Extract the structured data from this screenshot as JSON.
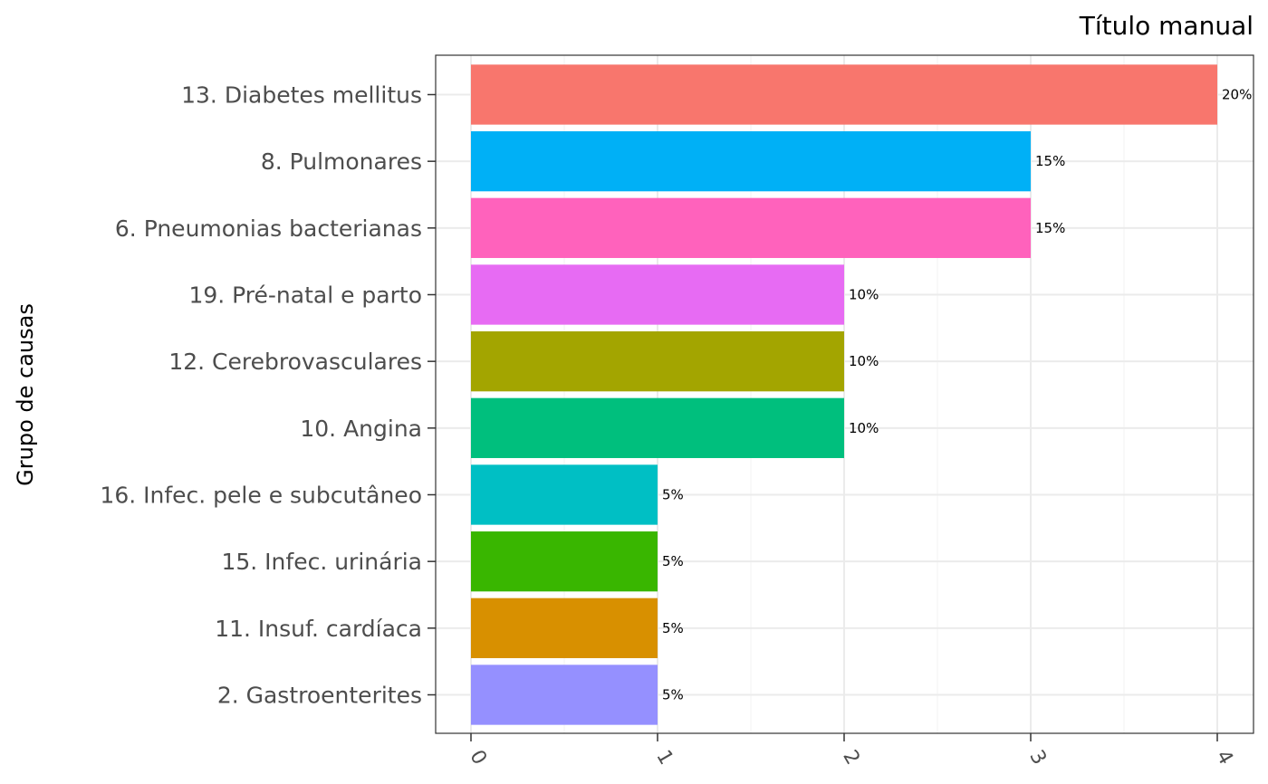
{
  "chart_data": {
    "type": "bar",
    "orientation": "horizontal",
    "title": "Título manual",
    "xlabel": "",
    "ylabel": "Grupo de causas",
    "xlim": [
      0,
      4
    ],
    "xticks": [
      "0",
      "1",
      "2",
      "3",
      "4"
    ],
    "grid": true,
    "legend": "none",
    "categories": [
      "13. Diabetes mellitus",
      "8. Pulmonares",
      "6. Pneumonias bacterianas",
      "19. Pré-natal e parto",
      "12. Cerebrovasculares",
      "10. Angina",
      "16. Infec. pele e subcutâneo",
      "15. Infec. urinária",
      "11. Insuf. cardíaca",
      "2. Gastroenterites"
    ],
    "values": [
      4,
      3,
      3,
      2,
      2,
      2,
      1,
      1,
      1,
      1
    ],
    "data_labels": [
      "20%",
      "15%",
      "15%",
      "10%",
      "10%",
      "10%",
      "5%",
      "5%",
      "5%",
      "5%"
    ],
    "colors": [
      "#F8766D",
      "#00B0F6",
      "#FF62BC",
      "#E76BF3",
      "#A3A500",
      "#00BF7D",
      "#00BFC4",
      "#39B600",
      "#D89000",
      "#9590FF"
    ]
  }
}
